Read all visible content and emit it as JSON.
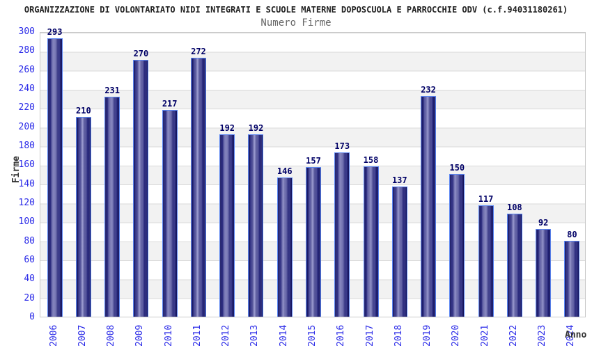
{
  "header": {
    "title": "ORGANIZZAZIONE DI VOLONTARIATO NIDI INTEGRATI E SCUOLE MATERNE DOPOSCUOLA E PARROCCHIE ODV (c.f.94031180261)",
    "subtitle": "Numero Firme"
  },
  "chart_data": {
    "type": "bar",
    "title": "Numero Firme",
    "xlabel": "Anno",
    "ylabel": "Firme",
    "categories": [
      "2006",
      "2007",
      "2008",
      "2009",
      "2010",
      "2011",
      "2012",
      "2013",
      "2014",
      "2015",
      "2016",
      "2017",
      "2018",
      "2019",
      "2020",
      "2021",
      "2022",
      "2023",
      "2024"
    ],
    "values": [
      293,
      210,
      231,
      270,
      217,
      272,
      192,
      192,
      146,
      157,
      173,
      158,
      137,
      232,
      150,
      117,
      108,
      92,
      80
    ],
    "ylim": [
      0,
      300
    ],
    "y_ticks": [
      0,
      20,
      40,
      60,
      80,
      100,
      120,
      140,
      160,
      180,
      200,
      220,
      240,
      260,
      280,
      300
    ],
    "grid": true,
    "legend": "none",
    "colors": {
      "bar_dark": "#12125f",
      "bar_light": "#9090ca",
      "bar_border": "#5b86f2",
      "tick_label": "#2a2ae8",
      "value_label": "#000066",
      "band": "#f2f2f2",
      "gridline": "#d9d9d9",
      "title": "#222222",
      "subtitle": "#666666",
      "axis_title": "#333333"
    }
  }
}
